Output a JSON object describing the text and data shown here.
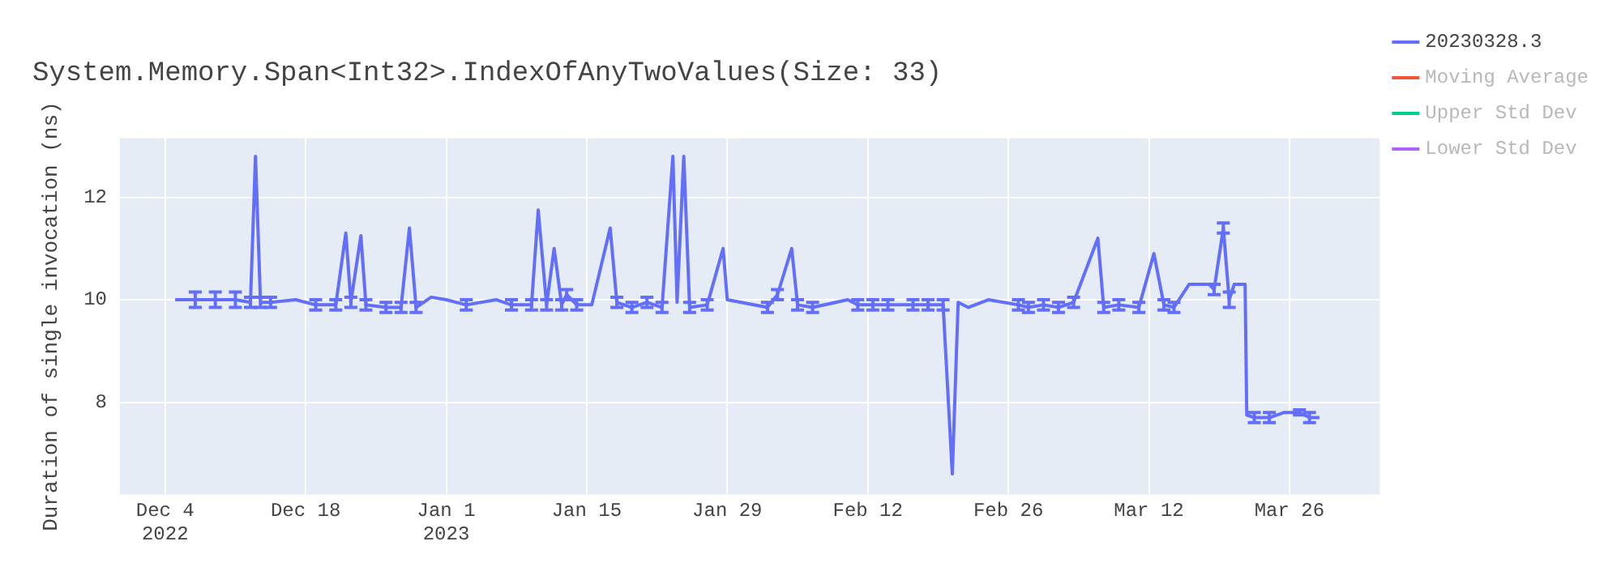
{
  "chart_data": {
    "type": "line",
    "title": "System.Memory.Span<Int32>.IndexOfAnyTwoValues(Size: 33)",
    "ylabel": "Duration of single invocation (ns)",
    "xlim": [
      "2022-11-29T12:00",
      "2023-04-04"
    ],
    "xticks": [
      {
        "value": "2022-12-04",
        "label": "Dec 4\n2022"
      },
      {
        "value": "2022-12-18",
        "label": "Dec 18"
      },
      {
        "value": "2023-01-01",
        "label": "Jan 1\n2023"
      },
      {
        "value": "2023-01-15",
        "label": "Jan 15"
      },
      {
        "value": "2023-01-29",
        "label": "Jan 29"
      },
      {
        "value": "2023-02-12",
        "label": "Feb 12"
      },
      {
        "value": "2023-02-26",
        "label": "Feb 26"
      },
      {
        "value": "2023-03-12",
        "label": "Mar 12"
      },
      {
        "value": "2023-03-26",
        "label": "Mar 26"
      }
    ],
    "ylim": [
      6.2,
      13.15
    ],
    "yticks": [
      8,
      10,
      12
    ],
    "grid": true,
    "legend": "right",
    "line_style": "solid",
    "series": [
      {
        "name": "20230328.3",
        "color": "#636efa",
        "x": [
          "2022-12-05",
          "2022-12-07",
          "2022-12-09",
          "2022-12-11",
          "2022-12-12T12:00",
          "2022-12-13",
          "2022-12-13T12:00",
          "2022-12-14T12:00",
          "2022-12-17",
          "2022-12-19",
          "2022-12-21",
          "2022-12-22",
          "2022-12-22T12:00",
          "2022-12-23T12:00",
          "2022-12-24",
          "2022-12-26",
          "2022-12-27T12:00",
          "2022-12-28T08:00",
          "2022-12-29",
          "2022-12-30T12:00",
          "2023-01-01",
          "2023-01-03",
          "2023-01-06",
          "2023-01-07T12:00",
          "2023-01-09T12:00",
          "2023-01-10T04:00",
          "2023-01-11",
          "2023-01-11T18:00",
          "2023-01-12T12:00",
          "2023-01-13",
          "2023-01-14",
          "2023-01-15T12:00",
          "2023-01-17T08:00",
          "2023-01-18",
          "2023-01-19T12:00",
          "2023-01-21",
          "2023-01-22T12:00",
          "2023-01-23T14:00",
          "2023-01-24",
          "2023-01-24T16:00",
          "2023-01-25T06:00",
          "2023-01-27",
          "2023-01-28T14:00",
          "2023-01-29",
          "2023-02-02",
          "2023-02-03",
          "2023-02-04T10:00",
          "2023-02-05",
          "2023-02-06T12:00",
          "2023-02-10",
          "2023-02-11",
          "2023-02-12T12:00",
          "2023-02-14",
          "2023-02-16T12:00",
          "2023-02-18",
          "2023-02-19T12:00",
          "2023-02-20T10:00",
          "2023-02-21",
          "2023-02-22",
          "2023-02-24",
          "2023-02-27",
          "2023-02-28",
          "2023-03-01T12:00",
          "2023-03-03",
          "2023-03-04T12:00",
          "2023-03-06T22:00",
          "2023-03-07T12:00",
          "2023-03-09",
          "2023-03-11",
          "2023-03-12T12:00",
          "2023-03-13T12:00",
          "2023-03-14T12:00",
          "2023-03-16",
          "2023-03-18",
          "2023-03-18T12:00",
          "2023-03-19T10:00",
          "2023-03-20",
          "2023-03-20T12:00",
          "2023-03-21T14:00",
          "2023-03-21T18:00",
          "2023-03-22T12:00",
          "2023-03-24",
          "2023-03-25T12:00",
          "2023-03-27",
          "2023-03-28",
          "2023-03-29"
        ],
        "values": [
          10.0,
          10.0,
          10.0,
          10.0,
          9.95,
          12.8,
          9.95,
          9.95,
          10.0,
          9.9,
          9.9,
          11.3,
          9.95,
          11.25,
          9.9,
          9.85,
          9.85,
          11.4,
          9.85,
          10.05,
          10.0,
          9.9,
          10.0,
          9.9,
          9.9,
          11.75,
          9.9,
          11.0,
          9.9,
          10.1,
          9.9,
          9.9,
          11.4,
          9.95,
          9.85,
          9.95,
          9.85,
          12.8,
          9.95,
          12.8,
          9.85,
          9.9,
          11.0,
          10.0,
          9.85,
          10.1,
          11.0,
          9.9,
          9.85,
          10.0,
          9.9,
          9.9,
          9.9,
          9.9,
          9.9,
          9.9,
          6.6,
          9.95,
          9.85,
          10.0,
          9.9,
          9.85,
          9.9,
          9.85,
          9.95,
          11.2,
          9.85,
          9.9,
          9.85,
          10.9,
          9.9,
          9.85,
          10.3,
          10.3,
          10.2,
          11.4,
          10.0,
          10.3,
          10.3,
          7.75,
          7.7,
          7.7,
          7.8,
          7.8,
          7.7,
          7.7
        ],
        "errors": [
          null,
          0.15,
          0.15,
          0.15,
          0.1,
          null,
          0.1,
          0.1,
          null,
          0.1,
          0.1,
          null,
          0.1,
          null,
          0.1,
          0.1,
          0.1,
          null,
          0.1,
          null,
          null,
          0.1,
          null,
          0.1,
          0.1,
          null,
          0.1,
          null,
          0.1,
          0.1,
          0.1,
          null,
          null,
          0.1,
          0.1,
          0.1,
          0.1,
          null,
          null,
          null,
          0.1,
          0.1,
          null,
          null,
          0.1,
          0.1,
          null,
          0.1,
          0.1,
          null,
          0.1,
          0.1,
          0.1,
          0.1,
          0.1,
          0.1,
          null,
          null,
          null,
          null,
          0.1,
          0.1,
          0.1,
          0.1,
          0.1,
          null,
          0.1,
          0.1,
          0.1,
          null,
          0.1,
          0.1,
          null,
          null,
          0.1,
          0.1,
          0.15,
          null,
          null,
          null,
          0.1,
          0.1,
          null,
          0.05,
          0.1,
          null
        ]
      },
      {
        "name": "Moving Average",
        "color": "#ef553b"
      },
      {
        "name": "Upper Std Dev",
        "color": "#00cc96"
      },
      {
        "name": "Lower Std Dev",
        "color": "#ab63fa"
      }
    ]
  }
}
